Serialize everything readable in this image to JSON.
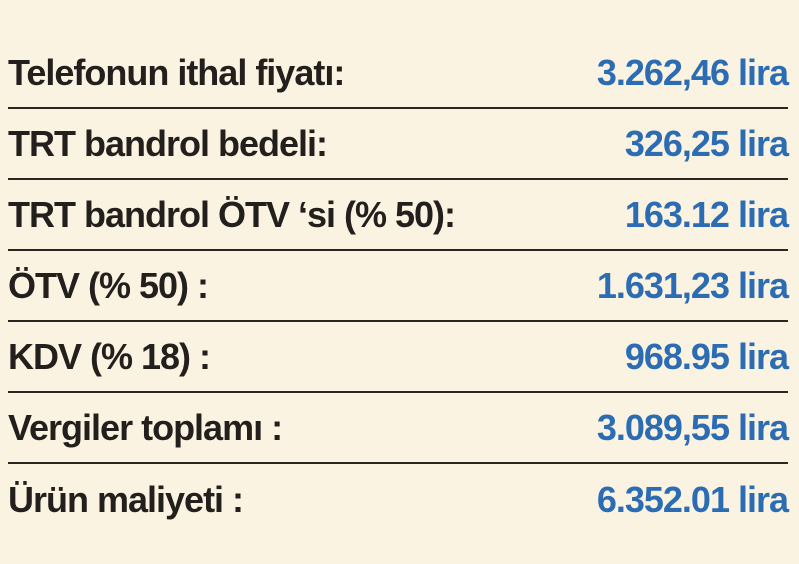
{
  "table": {
    "rows": [
      [
        "Telefonun ithal fiyatı:",
        "3.262,46 lira"
      ],
      [
        "TRT bandrol bedeli:",
        "326,25 lira"
      ],
      [
        "TRT bandrol ÖTV ‘si (% 50):",
        "163.12 lira"
      ],
      [
        "ÖTV (% 50) :",
        "1.631,23 lira"
      ],
      [
        "KDV (% 18) :",
        "968.95 lira"
      ],
      [
        "Vergiler toplamı :",
        "3.089,55 lira"
      ],
      [
        "Ürün maliyeti :",
        "6.352.01 lira"
      ]
    ]
  }
}
